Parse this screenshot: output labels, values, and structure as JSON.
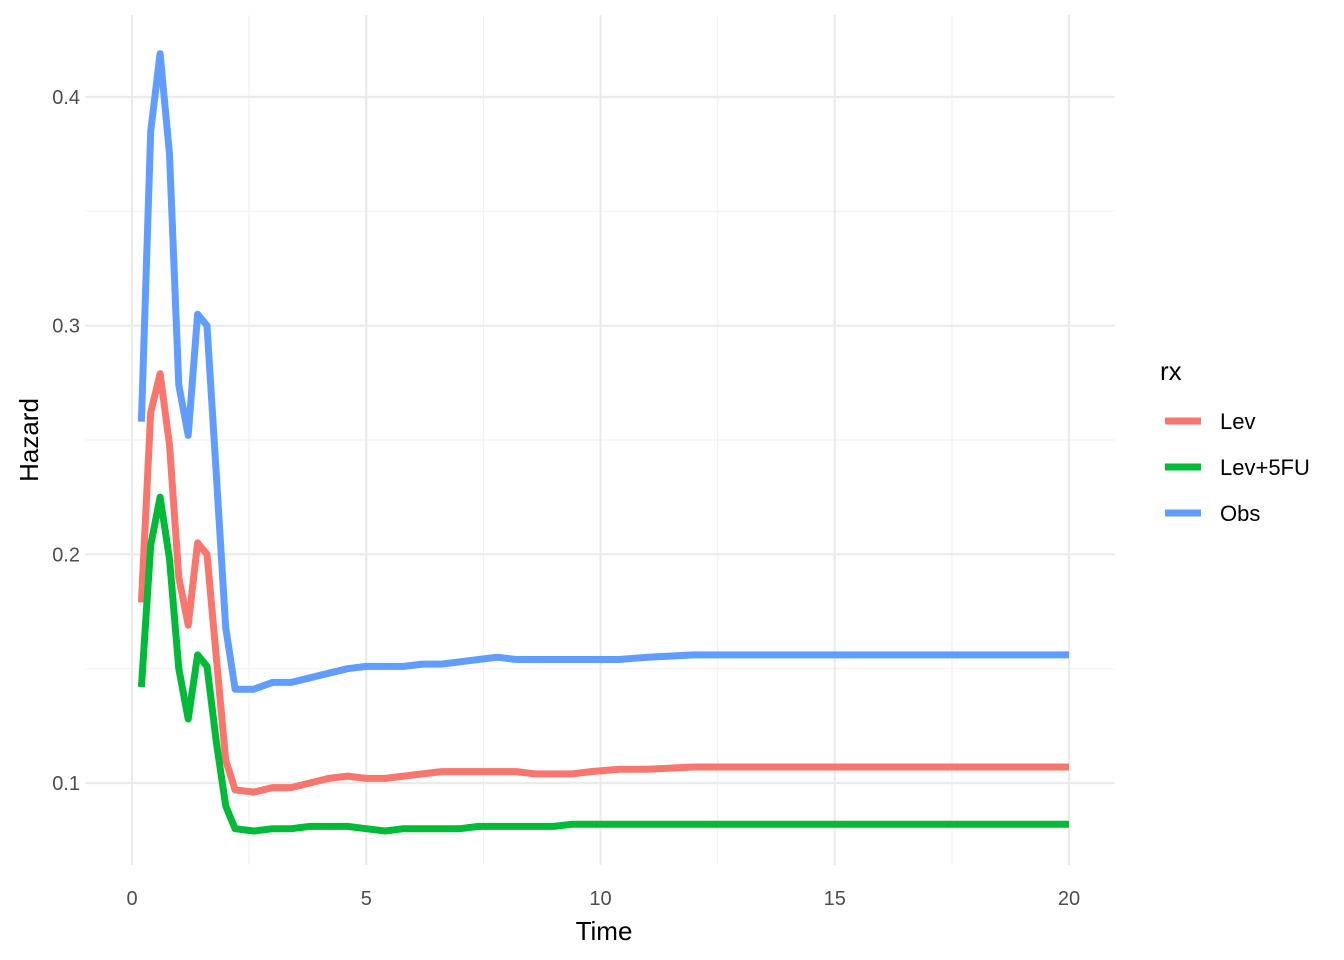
{
  "chart_data": {
    "type": "line",
    "xlabel": "Time",
    "ylabel": "Hazard",
    "xlim": [
      0,
      20
    ],
    "ylim": [
      0.063,
      0.435
    ],
    "x_ticks": [
      0,
      5,
      10,
      15,
      20
    ],
    "x_tick_labels": [
      "0",
      "5",
      "10",
      "15",
      "20"
    ],
    "y_ticks": [
      0.1,
      0.2,
      0.3,
      0.4
    ],
    "y_tick_labels": [
      "0.1",
      "0.2",
      "0.3",
      "0.4"
    ],
    "grid": true,
    "legend": {
      "title": "rx",
      "position": "right"
    },
    "series": [
      {
        "name": "Lev",
        "color": "#F8766D",
        "x": [
          0.2,
          0.4,
          0.6,
          0.8,
          1.0,
          1.2,
          1.4,
          1.6,
          1.8,
          2.0,
          2.2,
          2.6,
          3.0,
          3.4,
          3.8,
          4.2,
          4.6,
          5.0,
          5.4,
          5.8,
          6.2,
          6.6,
          7.0,
          7.4,
          7.8,
          8.2,
          8.6,
          9.0,
          9.4,
          9.8,
          10.4,
          11.0,
          12.0,
          13.0,
          14.0,
          16.0,
          18.0,
          20.0
        ],
        "y": [
          0.179,
          0.262,
          0.279,
          0.248,
          0.19,
          0.169,
          0.205,
          0.2,
          0.155,
          0.11,
          0.097,
          0.096,
          0.098,
          0.098,
          0.1,
          0.102,
          0.103,
          0.102,
          0.102,
          0.103,
          0.104,
          0.105,
          0.105,
          0.105,
          0.105,
          0.105,
          0.104,
          0.104,
          0.104,
          0.105,
          0.106,
          0.106,
          0.107,
          0.107,
          0.107,
          0.107,
          0.107,
          0.107
        ]
      },
      {
        "name": "Lev+5FU",
        "color": "#00BA38",
        "x": [
          0.2,
          0.4,
          0.6,
          0.8,
          1.0,
          1.2,
          1.4,
          1.6,
          1.8,
          2.0,
          2.2,
          2.6,
          3.0,
          3.4,
          3.8,
          4.2,
          4.6,
          5.0,
          5.4,
          5.8,
          6.2,
          6.6,
          7.0,
          7.4,
          7.8,
          8.2,
          8.6,
          9.0,
          9.4,
          9.8,
          10.4,
          11.0,
          12.0,
          13.0,
          14.0,
          16.0,
          18.0,
          20.0
        ],
        "y": [
          0.142,
          0.204,
          0.225,
          0.198,
          0.15,
          0.128,
          0.156,
          0.151,
          0.118,
          0.09,
          0.08,
          0.079,
          0.08,
          0.08,
          0.081,
          0.081,
          0.081,
          0.08,
          0.079,
          0.08,
          0.08,
          0.08,
          0.08,
          0.081,
          0.081,
          0.081,
          0.081,
          0.081,
          0.082,
          0.082,
          0.082,
          0.082,
          0.082,
          0.082,
          0.082,
          0.082,
          0.082,
          0.082
        ]
      },
      {
        "name": "Obs",
        "color": "#619CFF",
        "x": [
          0.2,
          0.4,
          0.6,
          0.8,
          1.0,
          1.2,
          1.4,
          1.6,
          1.8,
          2.0,
          2.2,
          2.6,
          3.0,
          3.4,
          3.8,
          4.2,
          4.6,
          5.0,
          5.4,
          5.8,
          6.2,
          6.6,
          7.0,
          7.4,
          7.8,
          8.2,
          8.6,
          9.0,
          9.4,
          9.8,
          10.4,
          11.0,
          12.0,
          13.0,
          14.0,
          16.0,
          18.0,
          20.0
        ],
        "y": [
          0.258,
          0.385,
          0.419,
          0.375,
          0.274,
          0.252,
          0.305,
          0.3,
          0.235,
          0.168,
          0.141,
          0.141,
          0.144,
          0.144,
          0.146,
          0.148,
          0.15,
          0.151,
          0.151,
          0.151,
          0.152,
          0.152,
          0.153,
          0.154,
          0.155,
          0.154,
          0.154,
          0.154,
          0.154,
          0.154,
          0.154,
          0.155,
          0.156,
          0.156,
          0.156,
          0.156,
          0.156,
          0.156
        ]
      }
    ]
  }
}
